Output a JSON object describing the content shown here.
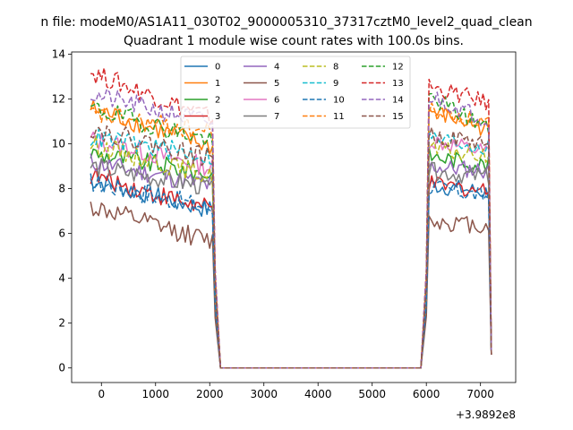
{
  "figure": {
    "suptitle": "n file: modeM0/AS1A11_030T02_9000005310_37317cztM0_level2_quad_clean"
  },
  "chart_data": {
    "type": "line",
    "title": "Quadrant 1 module wise count rates with 100.0s bins.",
    "xlabel": "",
    "ylabel": "",
    "x_offset_label": "+3.9892e8",
    "xlim": [
      -550,
      7650
    ],
    "ylim": [
      -0.65,
      14.1
    ],
    "xticks": [
      0,
      1000,
      2000,
      3000,
      4000,
      5000,
      6000,
      7000
    ],
    "yticks": [
      0,
      2,
      4,
      6,
      8,
      10,
      12,
      14
    ],
    "legend": {
      "location": "upper center",
      "columns": 4
    },
    "segments": {
      "active1": [
        -200,
        2100
      ],
      "drop": [
        2200
      ],
      "flat": [
        2200,
        5900
      ],
      "active2": [
        6000,
        7200
      ]
    },
    "series": [
      {
        "name": "0",
        "color": "#1f77b4",
        "style": "solid",
        "level1": [
          8.4,
          7.0
        ],
        "level2": [
          8.2,
          7.8
        ]
      },
      {
        "name": "1",
        "color": "#ff7f0e",
        "style": "solid",
        "level1": [
          11.6,
          9.8
        ],
        "level2": [
          11.5,
          10.6
        ]
      },
      {
        "name": "2",
        "color": "#2ca02c",
        "style": "solid",
        "level1": [
          9.6,
          8.6
        ],
        "level2": [
          9.5,
          9.0
        ]
      },
      {
        "name": "3",
        "color": "#d62728",
        "style": "solid",
        "level1": [
          8.6,
          7.0
        ],
        "level2": [
          8.2,
          7.9
        ]
      },
      {
        "name": "4",
        "color": "#9467bd",
        "style": "solid",
        "level1": [
          9.2,
          8.1
        ],
        "level2": [
          9.0,
          8.8
        ]
      },
      {
        "name": "5",
        "color": "#8c564b",
        "style": "solid",
        "level1": [
          7.2,
          5.6
        ],
        "level2": [
          6.6,
          6.3
        ]
      },
      {
        "name": "6",
        "color": "#e377c2",
        "style": "solid",
        "level1": [
          10.2,
          8.9
        ],
        "level2": [
          10.2,
          9.6
        ]
      },
      {
        "name": "7",
        "color": "#7f7f7f",
        "style": "solid",
        "level1": [
          9.0,
          8.0
        ],
        "level2": [
          8.8,
          8.5
        ]
      },
      {
        "name": "8",
        "color": "#bcbd22",
        "style": "dashed",
        "level1": [
          10.0,
          8.5
        ],
        "level2": [
          9.8,
          9.4
        ]
      },
      {
        "name": "9",
        "color": "#17becf",
        "style": "dashed",
        "level1": [
          10.3,
          9.4
        ],
        "level2": [
          10.3,
          9.8
        ]
      },
      {
        "name": "10",
        "color": "#1f77b4",
        "style": "dashed",
        "level1": [
          8.3,
          7.1
        ],
        "level2": [
          8.1,
          7.6
        ]
      },
      {
        "name": "11",
        "color": "#ff7f0e",
        "style": "dashed",
        "level1": [
          11.3,
          10.5
        ],
        "level2": [
          11.5,
          10.9
        ]
      },
      {
        "name": "12",
        "color": "#2ca02c",
        "style": "dashed",
        "level1": [
          11.6,
          10.1
        ],
        "level2": [
          12.2,
          10.6
        ]
      },
      {
        "name": "13",
        "color": "#d62728",
        "style": "dashed",
        "level1": [
          13.2,
          11.1
        ],
        "level2": [
          12.6,
          11.8
        ]
      },
      {
        "name": "14",
        "color": "#9467bd",
        "style": "dashed",
        "level1": [
          12.2,
          10.9
        ],
        "level2": [
          12.2,
          11.0
        ]
      },
      {
        "name": "15",
        "color": "#8c564b",
        "style": "dashed",
        "level1": [
          10.7,
          9.3
        ],
        "level2": [
          10.4,
          10.0
        ]
      }
    ]
  }
}
